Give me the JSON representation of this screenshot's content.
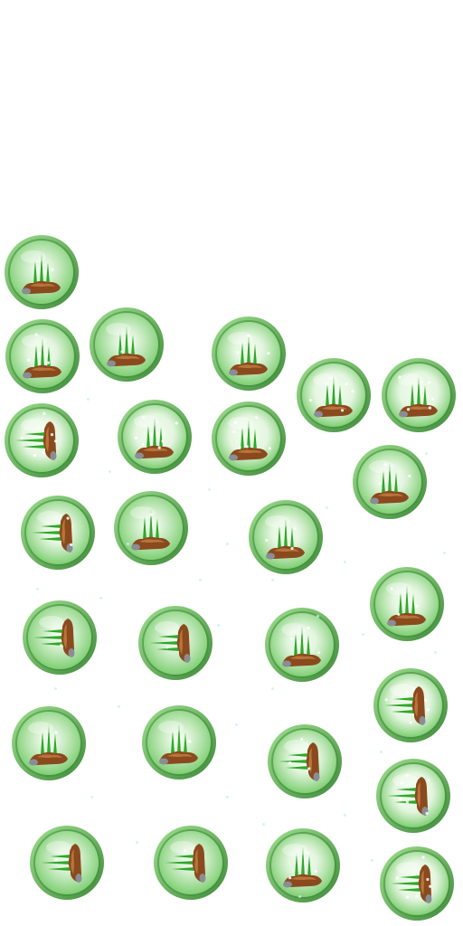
{
  "sheet": {
    "background": "#ffffff",
    "badge_colors": {
      "rim_dark": "#3e8a3a",
      "rim_light": "#9ee08e",
      "face_center": "#f4fff0",
      "face_edge": "#7fcf73",
      "grass": "#2fa82a",
      "mound": "#8a4a1e",
      "mound_light": "#b8743a",
      "stone": "#8c8c96"
    },
    "sprites": [
      {
        "name": "grass-mound-badge",
        "orientation": "upright",
        "glow": "low"
      },
      {
        "name": "grass-mound-badge",
        "orientation": "upright",
        "glow": "medium"
      },
      {
        "name": "grass-mound-badge",
        "orientation": "upright",
        "glow": "low"
      },
      {
        "name": "grass-mound-badge",
        "orientation": "upright",
        "glow": "medium"
      },
      {
        "name": "grass-mound-badge",
        "orientation": "upright",
        "glow": "high"
      },
      {
        "name": "grass-mound-badge",
        "orientation": "upright",
        "glow": "high"
      },
      {
        "name": "grass-mound-badge",
        "orientation": "sideways",
        "glow": "high"
      },
      {
        "name": "grass-mound-badge",
        "orientation": "upright",
        "glow": "high"
      },
      {
        "name": "grass-mound-badge",
        "orientation": "upright",
        "glow": "high"
      },
      {
        "name": "grass-mound-badge",
        "orientation": "upright",
        "glow": "medium"
      },
      {
        "name": "grass-mound-badge",
        "orientation": "sideways",
        "glow": "medium"
      },
      {
        "name": "grass-mound-badge",
        "orientation": "upright",
        "glow": "low"
      },
      {
        "name": "grass-mound-badge",
        "orientation": "upright",
        "glow": "medium"
      },
      {
        "name": "grass-mound-badge",
        "orientation": "upright",
        "glow": "medium"
      },
      {
        "name": "grass-mound-badge",
        "orientation": "sideways",
        "glow": "low"
      },
      {
        "name": "grass-mound-badge",
        "orientation": "sideways",
        "glow": "low"
      },
      {
        "name": "grass-mound-badge",
        "orientation": "upright",
        "glow": "medium"
      },
      {
        "name": "grass-mound-badge",
        "orientation": "sideways",
        "glow": "high"
      },
      {
        "name": "grass-mound-badge",
        "orientation": "upright",
        "glow": "low"
      },
      {
        "name": "grass-mound-badge",
        "orientation": "upright",
        "glow": "low"
      },
      {
        "name": "grass-mound-badge",
        "orientation": "sideways",
        "glow": "medium"
      },
      {
        "name": "grass-mound-badge",
        "orientation": "sideways",
        "glow": "high"
      },
      {
        "name": "grass-mound-badge",
        "orientation": "sideways",
        "glow": "low"
      },
      {
        "name": "grass-mound-badge",
        "orientation": "sideways",
        "glow": "low"
      },
      {
        "name": "grass-mound-badge",
        "orientation": "upright",
        "glow": "medium"
      },
      {
        "name": "grass-mound-badge",
        "orientation": "sideways",
        "glow": "high"
      }
    ]
  }
}
